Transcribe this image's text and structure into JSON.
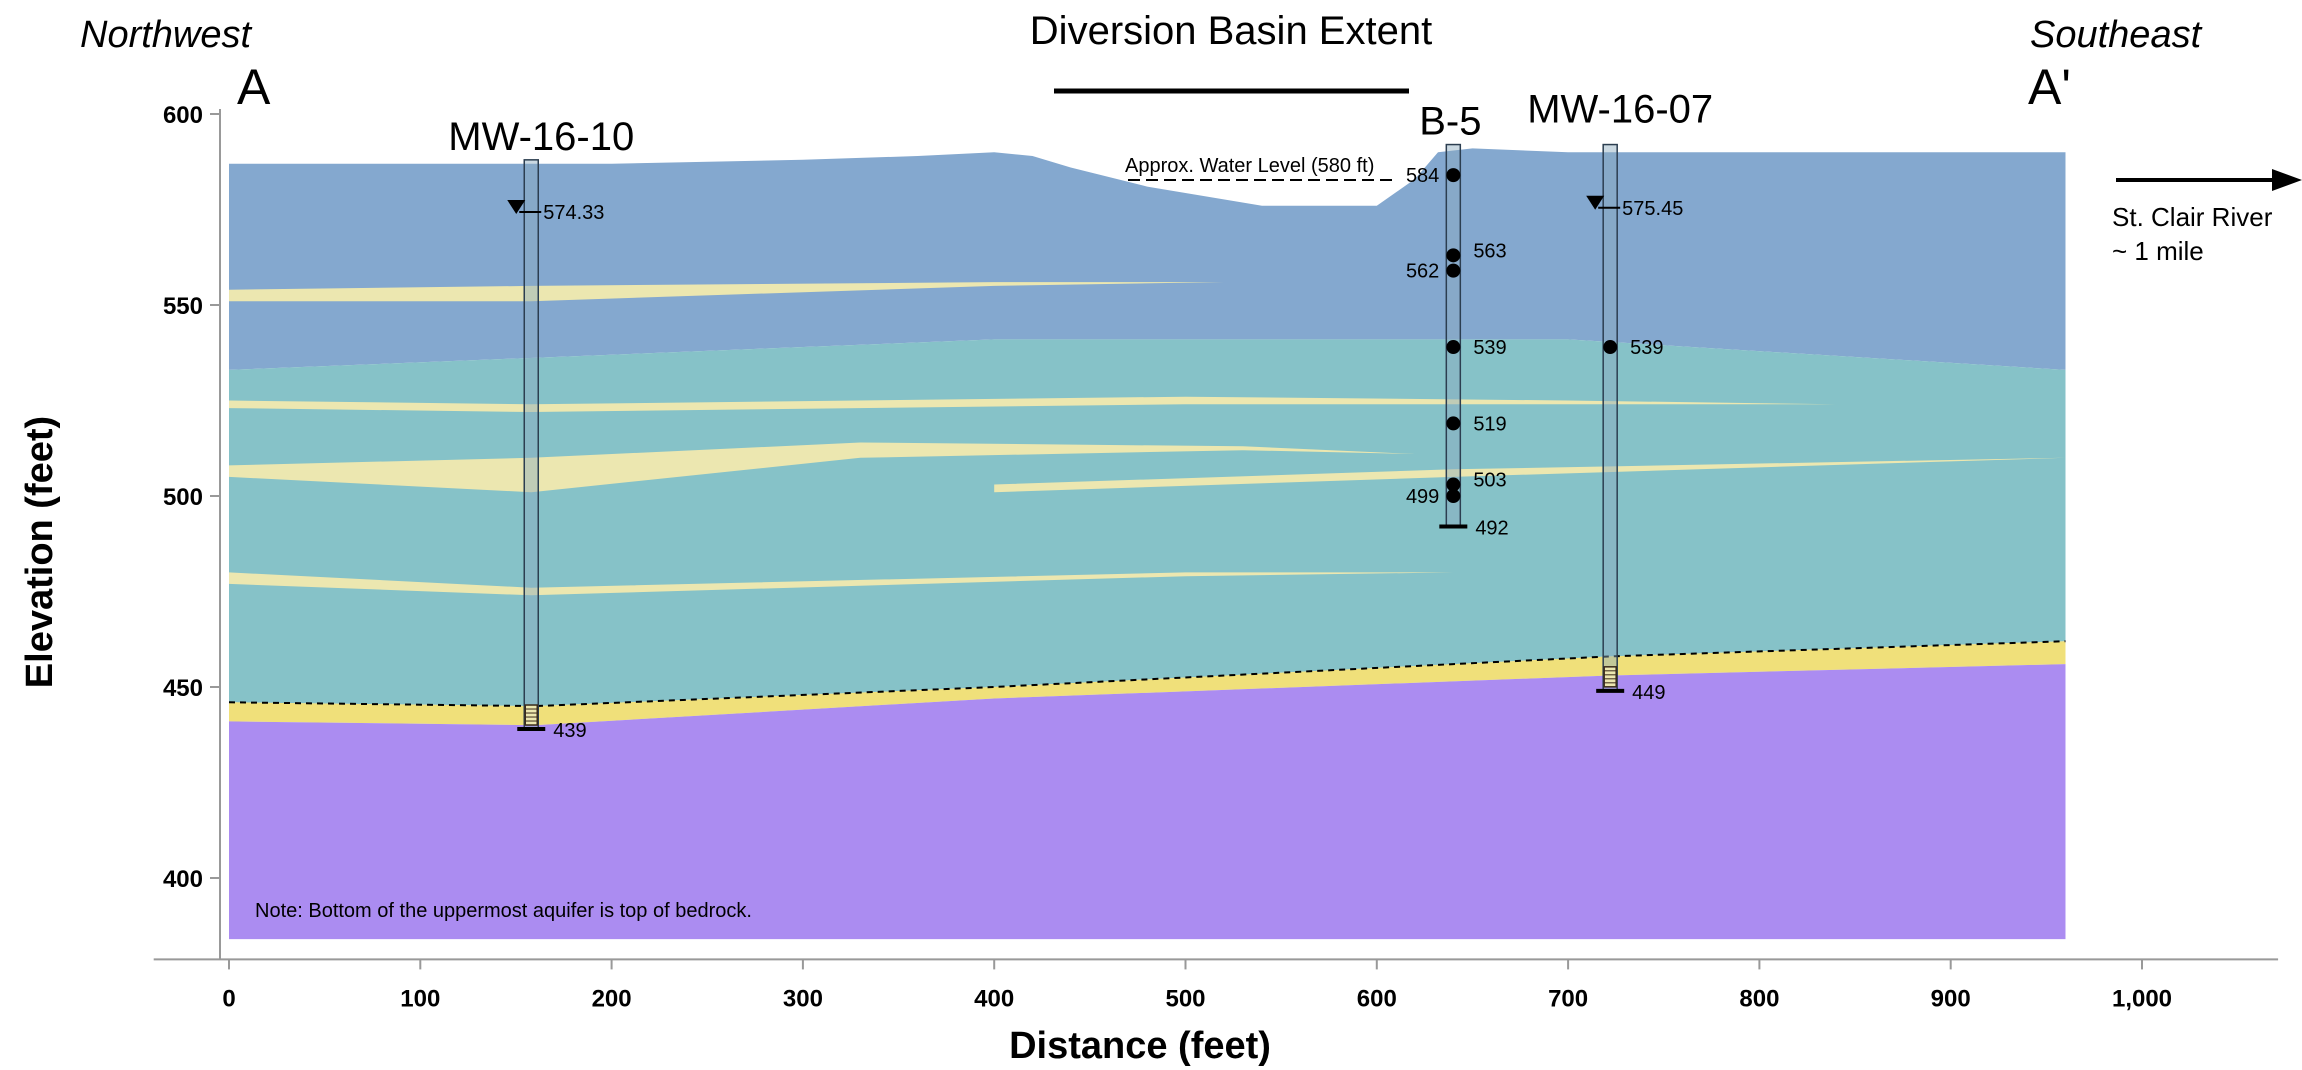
{
  "title": "Diversion Basin Extent",
  "directions": {
    "left_label": "Northwest",
    "left_point": "A",
    "right_label": "Southeast",
    "right_point": "A'"
  },
  "axes": {
    "xlabel": "Distance (feet)",
    "ylabel": "Elevation (feet)",
    "x_ticks": [
      "0",
      "100",
      "200",
      "300",
      "400",
      "500",
      "600",
      "700",
      "800",
      "900",
      "1,000"
    ],
    "y_ticks": [
      "600",
      "550",
      "500",
      "450",
      "400"
    ],
    "xlim": [
      -8,
      1045
    ],
    "ylim": [
      380,
      600
    ]
  },
  "river": {
    "line1": "St. Clair River",
    "line2": "~ 1 mile"
  },
  "water_level_label": "Approx. Water Level (580 ft)",
  "note": "Note: Bottom of the uppermost aquifer is top of bedrock.",
  "wells": [
    {
      "name": "MW-16-10",
      "x": 158,
      "water_level": "574.33",
      "bottom": "439"
    },
    {
      "name": "B-5",
      "x": 640,
      "bottom": "492",
      "samples": [
        {
          "label": "584",
          "y": 584,
          "side": "left"
        },
        {
          "label": "563",
          "y": 563,
          "side": "right"
        },
        {
          "label": "562",
          "y": 559,
          "side": "left"
        },
        {
          "label": "539",
          "y": 539,
          "side": "right"
        },
        {
          "label": "519",
          "y": 519,
          "side": "right"
        },
        {
          "label": "503",
          "y": 503,
          "side": "right"
        },
        {
          "label": "499",
          "y": 500,
          "side": "left"
        }
      ]
    },
    {
      "name": "MW-16-07",
      "x": 722,
      "water_level": "575.45",
      "bottom": "449",
      "samples": [
        {
          "label": "539",
          "y": 539,
          "side": "right"
        }
      ]
    }
  ],
  "colors": {
    "top_layer": "#84a8cf",
    "middle_layer": "#86c2c8",
    "sand_lens": "#ece7b0",
    "sand_aquifer": "#f0e07a",
    "bedrock": "#ab8cf1",
    "axis": "#999999"
  }
}
